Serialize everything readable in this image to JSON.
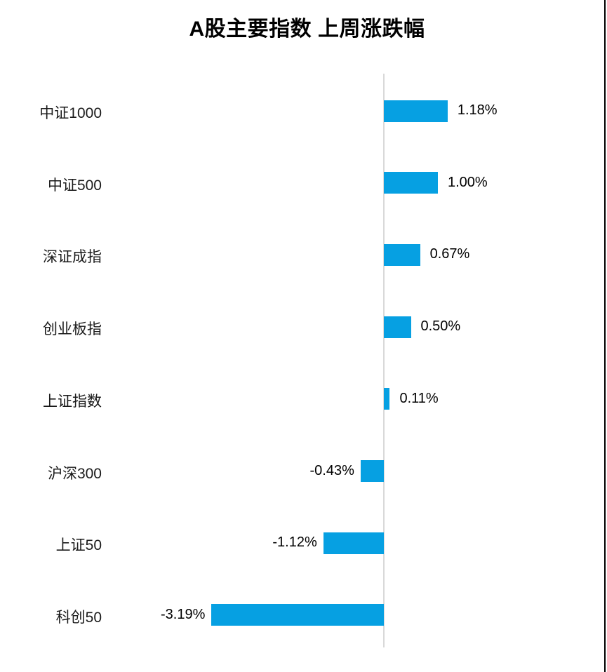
{
  "title": "A股主要指数 上周涨跌幅",
  "colors": {
    "bar": "#06a0e2",
    "axis_line": "#d9d9d9",
    "frame_border": "#000000",
    "category_text": "#1a1a1a",
    "value_text": "#000000",
    "title_text": "#000000"
  },
  "chart_data": {
    "type": "bar",
    "orientation": "horizontal",
    "title": "A股主要指数 上周涨跌幅",
    "unit": "%",
    "categories": [
      "中证1000",
      "中证500",
      "深证成指",
      "创业板指",
      "上证指数",
      "沪深300",
      "上证50",
      "科创50"
    ],
    "values": [
      1.18,
      1.0,
      0.67,
      0.5,
      0.11,
      -0.43,
      -1.12,
      -3.19
    ],
    "value_labels": [
      "1.18%",
      "1.00%",
      "0.67%",
      "0.50%",
      "0.11%",
      "-0.43%",
      "-1.12%",
      "-3.19%"
    ],
    "series_name": "上周涨跌幅",
    "grid": false,
    "axis_labels_visible": false,
    "data_labels_visible": true,
    "zero_baseline_visible": true,
    "xlim": [
      -3.5,
      1.5
    ]
  }
}
